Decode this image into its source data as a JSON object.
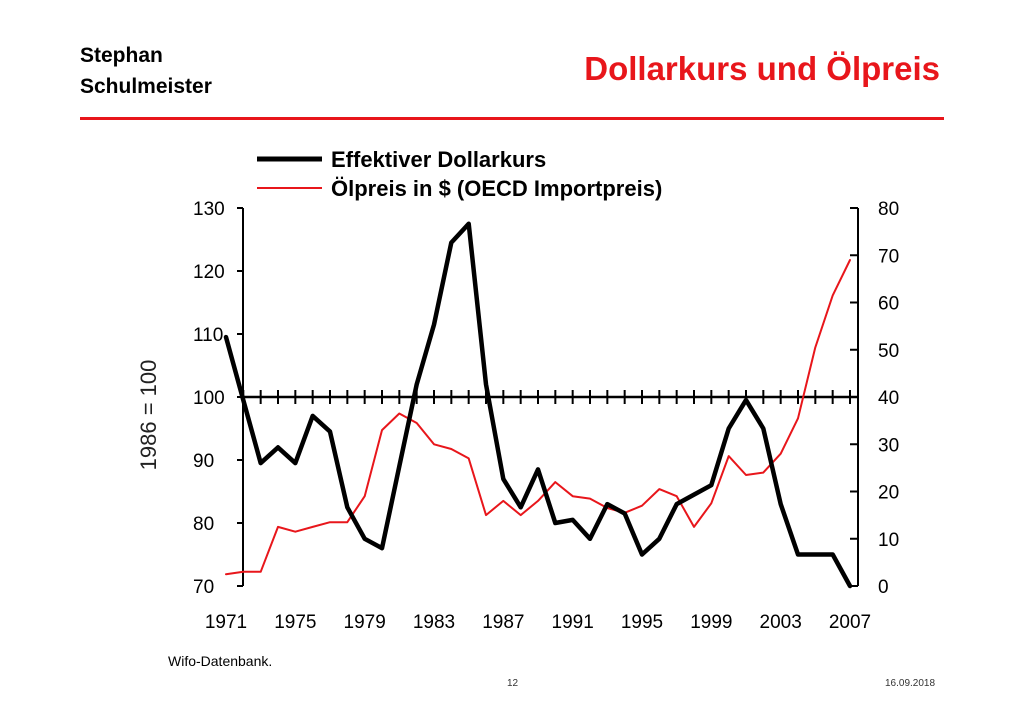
{
  "header": {
    "author_line1": "Stephan",
    "author_line2": "Schulmeister",
    "title": "Dollarkurs und Ölpreis"
  },
  "footer": {
    "source": "Wifo-Datenbank.",
    "page_number": "12",
    "date": "16.09.2018"
  },
  "colors": {
    "accent": "#e8161b",
    "dollar_line": "#000000",
    "oil_line": "#e8161b"
  },
  "chart_data": {
    "type": "line",
    "ylabel": "1986 = 100",
    "x": [
      1971,
      1972,
      1973,
      1974,
      1975,
      1976,
      1977,
      1978,
      1979,
      1980,
      1981,
      1982,
      1983,
      1984,
      1985,
      1986,
      1987,
      1988,
      1989,
      1990,
      1991,
      1992,
      1993,
      1994,
      1995,
      1996,
      1997,
      1998,
      1999,
      2000,
      2001,
      2002,
      2003,
      2004,
      2005,
      2006,
      2007
    ],
    "x_ticks": [
      "1971",
      "1975",
      "1979",
      "1983",
      "1987",
      "1991",
      "1995",
      "1999",
      "2003",
      "2007"
    ],
    "y_left": {
      "ticks": [
        "130",
        "120",
        "110",
        "100",
        "90",
        "80",
        "70"
      ],
      "range": [
        70,
        130
      ]
    },
    "y_right": {
      "ticks": [
        "80",
        "70",
        "60",
        "50",
        "40",
        "30",
        "20",
        "10",
        "0"
      ],
      "range": [
        0,
        80
      ]
    },
    "reference_line": 100,
    "legend_position": "top",
    "series": [
      {
        "name": "Effektiver Dollarkurs",
        "axis": "left",
        "values": [
          109.5,
          99.5,
          89.5,
          92,
          89.5,
          97,
          94.5,
          82.5,
          77.5,
          76,
          89,
          102,
          111.5,
          124.5,
          127.5,
          102,
          87,
          82.5,
          88.5,
          80,
          80.5,
          77.5,
          83,
          81.5,
          75,
          77.5,
          83,
          84.5,
          86,
          95,
          99.5,
          95,
          83,
          75,
          75,
          75,
          70
        ]
      },
      {
        "name": "Ölpreis in $ (OECD Importpreis)",
        "axis": "right",
        "values": [
          2.5,
          3,
          3,
          12.5,
          11.5,
          12.5,
          13.5,
          13.5,
          19,
          33,
          36.5,
          34.5,
          30,
          29,
          27,
          15,
          18,
          15,
          18,
          22,
          19,
          18.5,
          16.5,
          15.5,
          17,
          20.5,
          19,
          12.5,
          17.5,
          27.5,
          23.5,
          24,
          28,
          35.5,
          50.5,
          61.5,
          69
        ]
      }
    ]
  }
}
